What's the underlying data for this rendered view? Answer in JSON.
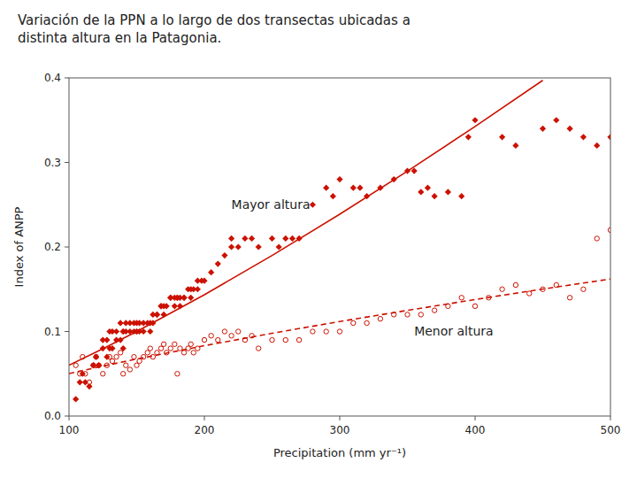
{
  "chart_data": {
    "type": "scatter",
    "title": "Variación de la PPN a lo largo de dos transectas ubicadas a\ndistinta altura en la Patagonia.",
    "x_label": "Precipitation (mm yr⁻¹)",
    "y_label": "Index of ANPP",
    "xlim": [
      100,
      500
    ],
    "ylim": [
      0,
      0.4
    ],
    "xticks": [
      100,
      200,
      300,
      400,
      500
    ],
    "yticks": [
      {
        "value": 0,
        "label": "0.0"
      },
      0.1,
      0.2,
      0.3,
      0.4
    ],
    "grid": false,
    "series": [
      {
        "type": "scatter",
        "marker": "diamond",
        "color": "#CC1100",
        "x": [
          105,
          108,
          110,
          112,
          115,
          118,
          120,
          122,
          125,
          125,
          128,
          128,
          130,
          130,
          132,
          132,
          135,
          135,
          138,
          138,
          140,
          140,
          140,
          142,
          142,
          145,
          145,
          148,
          148,
          150,
          150,
          150,
          152,
          152,
          155,
          155,
          158,
          160,
          160,
          162,
          162,
          165,
          165,
          168,
          168,
          170,
          170,
          172,
          175,
          175,
          178,
          178,
          180,
          180,
          182,
          182,
          185,
          185,
          188,
          190,
          190,
          192,
          195,
          195,
          198,
          200,
          205,
          210,
          215,
          220,
          220,
          225,
          230,
          235,
          240,
          250,
          255,
          260,
          265,
          270,
          280,
          290,
          295,
          300,
          310,
          315,
          320,
          330,
          340,
          350,
          355,
          360,
          365,
          370,
          380,
          390,
          395,
          400,
          420,
          430,
          450,
          460,
          470,
          480,
          490,
          500
        ],
        "values": [
          0.02,
          0.04,
          0.05,
          0.04,
          0.035,
          0.06,
          0.07,
          0.06,
          0.08,
          0.09,
          0.07,
          0.09,
          0.1,
          0.08,
          0.08,
          0.1,
          0.09,
          0.1,
          0.09,
          0.11,
          0.1,
          0.1,
          0.08,
          0.1,
          0.11,
          0.1,
          0.11,
          0.11,
          0.1,
          0.11,
          0.1,
          0.1,
          0.1,
          0.11,
          0.1,
          0.11,
          0.11,
          0.1,
          0.11,
          0.11,
          0.12,
          0.12,
          0.12,
          0.13,
          0.13,
          0.12,
          0.13,
          0.13,
          0.14,
          0.14,
          0.13,
          0.14,
          0.14,
          0.14,
          0.13,
          0.14,
          0.14,
          0.14,
          0.15,
          0.14,
          0.15,
          0.15,
          0.15,
          0.16,
          0.16,
          0.16,
          0.17,
          0.18,
          0.19,
          0.21,
          0.2,
          0.2,
          0.21,
          0.21,
          0.2,
          0.21,
          0.2,
          0.21,
          0.21,
          0.21,
          0.25,
          0.27,
          0.26,
          0.28,
          0.27,
          0.27,
          0.26,
          0.27,
          0.28,
          0.29,
          0.29,
          0.265,
          0.27,
          0.26,
          0.265,
          0.26,
          0.33,
          0.35,
          0.33,
          0.32,
          0.34,
          0.35,
          0.34,
          0.33,
          0.32,
          0.33
        ]
      },
      {
        "type": "scatter",
        "marker": "circle-open",
        "color": "#CC1100",
        "x": [
          105,
          108,
          110,
          112,
          115,
          118,
          120,
          122,
          125,
          128,
          130,
          132,
          135,
          138,
          140,
          142,
          145,
          148,
          150,
          152,
          155,
          158,
          160,
          162,
          165,
          168,
          170,
          172,
          175,
          178,
          180,
          182,
          185,
          188,
          190,
          192,
          195,
          200,
          205,
          210,
          215,
          220,
          225,
          230,
          235,
          240,
          250,
          260,
          270,
          280,
          290,
          300,
          310,
          320,
          330,
          340,
          350,
          360,
          370,
          380,
          390,
          400,
          410,
          420,
          430,
          440,
          450,
          460,
          470,
          480,
          490,
          500
        ],
        "values": [
          0.06,
          0.05,
          0.07,
          0.05,
          0.04,
          0.06,
          0.07,
          0.06,
          0.05,
          0.06,
          0.07,
          0.065,
          0.07,
          0.075,
          0.05,
          0.06,
          0.055,
          0.07,
          0.06,
          0.065,
          0.07,
          0.075,
          0.08,
          0.07,
          0.075,
          0.08,
          0.085,
          0.075,
          0.08,
          0.085,
          0.05,
          0.08,
          0.075,
          0.08,
          0.085,
          0.075,
          0.08,
          0.09,
          0.095,
          0.09,
          0.1,
          0.095,
          0.1,
          0.09,
          0.095,
          0.08,
          0.09,
          0.09,
          0.09,
          0.1,
          0.1,
          0.1,
          0.11,
          0.11,
          0.115,
          0.12,
          0.12,
          0.12,
          0.125,
          0.13,
          0.14,
          0.13,
          0.14,
          0.15,
          0.155,
          0.145,
          0.15,
          0.155,
          0.14,
          0.15,
          0.21,
          0.22
        ]
      },
      {
        "type": "line",
        "line_style": "solid",
        "color": "#CC1100",
        "x": [
          100,
          125,
          150,
          200,
          250,
          300,
          350,
          400,
          450
        ],
        "values": [
          0.0601,
          0.0796,
          0.1,
          0.1435,
          0.1899,
          0.2387,
          0.2897,
          0.3425,
          0.3971
        ]
      },
      {
        "type": "line",
        "line_style": "dashed",
        "color": "#CC1100",
        "x": [
          100,
          125,
          150,
          200,
          250,
          300,
          350,
          400,
          450,
          500
        ],
        "values": [
          0.0502,
          0.0591,
          0.0674,
          0.0832,
          0.0979,
          0.1118,
          0.125,
          0.1378,
          0.1502,
          0.1621
        ]
      }
    ],
    "annotations": [
      {
        "text": "Mayor altura",
        "x": 220,
        "y": 0.245
      },
      {
        "text": "Menor altura",
        "x": 355,
        "y": 0.095
      }
    ]
  }
}
